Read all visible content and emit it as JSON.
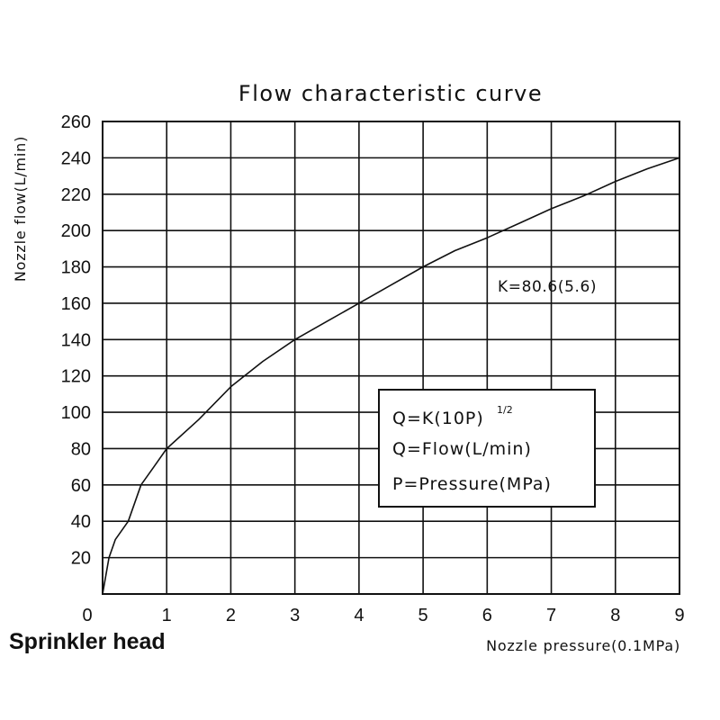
{
  "chart_data": {
    "type": "line",
    "title": "Flow characteristic curve",
    "xlabel": "Nozzle pressure(0.1MPa)",
    "ylabel": "Nozzle flow(L/min)",
    "xlim": [
      0,
      9
    ],
    "ylim": [
      0,
      260
    ],
    "x_ticks": [
      "0",
      "1",
      "2",
      "3",
      "4",
      "5",
      "6",
      "7",
      "8",
      "9"
    ],
    "y_ticks": [
      "20",
      "40",
      "60",
      "80",
      "100",
      "120",
      "140",
      "160",
      "180",
      "200",
      "220",
      "240",
      "260"
    ],
    "grid": true,
    "series": [
      {
        "name": "K=80.6(5.6)",
        "x": [
          0.1,
          0.2,
          0.4,
          0.6,
          0.8,
          1,
          1.5,
          2,
          2.5,
          3,
          3.5,
          4,
          4.5,
          5,
          5.5,
          6,
          6.5,
          7,
          7.5,
          8,
          8.5,
          9
        ],
        "y": [
          20,
          30,
          40,
          60,
          70,
          80,
          96,
          114,
          128,
          140,
          150,
          160,
          170,
          180,
          189,
          196,
          204,
          212,
          219,
          227,
          234,
          240
        ]
      }
    ],
    "annotations": {
      "curve_label": "K=80.6(5.6)",
      "formula_main": "Q=K(10P)",
      "formula_sup": "1/2",
      "formula_flow": "Q=Flow(L/min)",
      "formula_pressure": "P=Pressure(MPa)"
    }
  },
  "footer": {
    "label": "Sprinkler head"
  },
  "colors": {
    "line": "#111111",
    "grid": "#111111",
    "background": "#ffffff"
  }
}
